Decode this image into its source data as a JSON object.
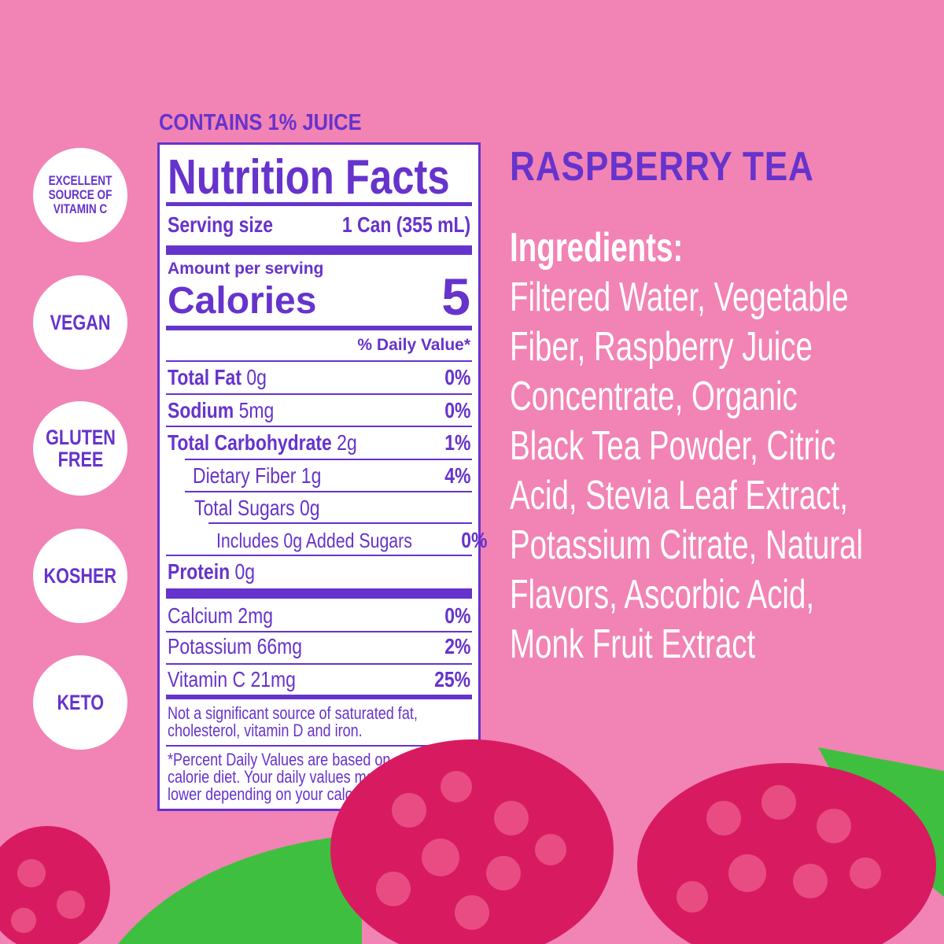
{
  "badges": [
    "EXCELLENT SOURCE OF VITAMIN C",
    "VEGAN",
    "GLUTEN FREE",
    "KOSHER",
    "KETO"
  ],
  "contains": "CONTAINS 1% JUICE",
  "label": {
    "title": "Nutrition Facts",
    "serving_label": "Serving size",
    "serving_value": "1 Can (355 mL)",
    "amount_per_serving": "Amount per serving",
    "calories_label": "Calories",
    "calories_value": "5",
    "daily_value_header": "% Daily Value*",
    "rows": [
      {
        "name": "Total Fat",
        "amount": "0g",
        "dv": "0%"
      },
      {
        "name": "Sodium",
        "amount": "5mg",
        "dv": "0%"
      },
      {
        "name": "Total Carbohydrate",
        "amount": "2g",
        "dv": "1%"
      },
      {
        "name": "Dietary Fiber",
        "amount": "1g",
        "dv": "4%"
      },
      {
        "name": "Total Sugars",
        "amount": "0g",
        "dv": ""
      },
      {
        "name": "Includes 0g Added Sugars",
        "amount": "",
        "dv": "0%"
      },
      {
        "name": "Protein",
        "amount": "0g",
        "dv": ""
      }
    ],
    "vitamins": [
      {
        "text": "Calcium 2mg",
        "dv": "0%"
      },
      {
        "text": "Potassium 66mg",
        "dv": "2%"
      },
      {
        "text": "Vitamin C 21mg",
        "dv": "25%"
      }
    ],
    "note": "Not a significant source of saturated fat, cholesterol, vitamin D and iron.",
    "footnote": "*Percent Daily Values are based on a 2,000 calorie diet. Your daily values may be higher or lower depending on your calorie needs."
  },
  "product_name": "RASPBERRY TEA",
  "ingredients_heading": "Ingredients:",
  "ingredients": "Filtered Water, Vegetable Fiber, Raspberry Juice Concentrate, Organic Black Tea Powder, Citric Acid, Stevia Leaf Extract, Potassium Citrate, Natural Flavors, Ascorbic Acid, Monk Fruit Extract",
  "colors": {
    "background": "#f283b5",
    "accent": "#6633cc",
    "raspberry": "#d81b60",
    "leaf": "#3fbf3f"
  }
}
